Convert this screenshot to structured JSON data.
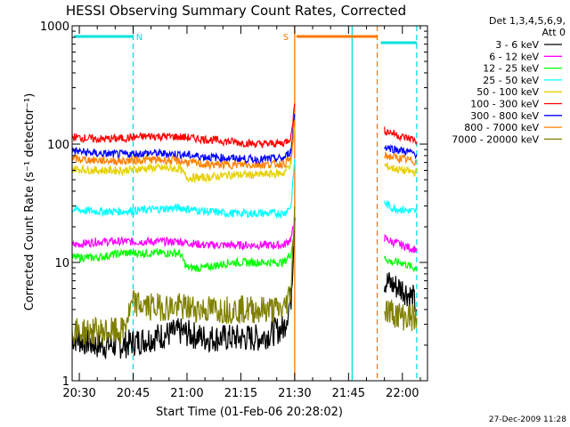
{
  "chart_data": {
    "type": "line",
    "title": "HESSI Observing Summary Count Rates, Corrected",
    "xlabel": "Start Time (01-Feb-06 20:28:02)",
    "ylabel": "Corrected Count Rate (s⁻¹ detector⁻¹)",
    "yscale": "log",
    "ylim": [
      1,
      1000
    ],
    "xlim": [
      "20:28",
      "22:07"
    ],
    "x_ticks": [
      "20:30",
      "20:45",
      "21:00",
      "21:15",
      "21:30",
      "21:45",
      "22:00"
    ],
    "y_ticks": [
      "1",
      "10",
      "100",
      "1000"
    ],
    "legend_header": [
      "Det 1,3,4,5,6,9,",
      "Att 0"
    ],
    "legend_position": "right",
    "footer": "27-Dec-2009 11:28",
    "markers": [
      {
        "label": "N",
        "start": "20:28",
        "end": "20:45",
        "color": "#00e0e0"
      },
      {
        "label": "S",
        "start": "21:30",
        "end": "21:53",
        "color": "#ff7700"
      }
    ],
    "vertical_lines": [
      {
        "time": "20:45",
        "color": "#00e0e0",
        "style": "dashed"
      },
      {
        "time": "21:30",
        "color": "#ff7700",
        "style": "solid"
      },
      {
        "time": "21:46",
        "color": "#00e0e0",
        "style": "solid"
      },
      {
        "time": "21:53",
        "color": "#ff7700",
        "style": "dashed"
      },
      {
        "time": "22:04",
        "color": "#00e0e0",
        "style": "dashed"
      }
    ],
    "series": [
      {
        "name": "3 - 6 keV",
        "color": "#000000",
        "x": [
          "20:28",
          "20:35",
          "20:42",
          "20:50",
          "20:58",
          "21:05",
          "21:12",
          "21:20",
          "21:27",
          "21:29",
          "21:30",
          "21:55",
          "21:57",
          "22:00",
          "22:03",
          "22:04"
        ],
        "values": [
          2.3,
          2.0,
          2.0,
          2.3,
          2.6,
          2.3,
          2.3,
          2.3,
          2.8,
          5,
          24,
          7,
          6.5,
          6,
          5,
          4
        ]
      },
      {
        "name": "6 - 12 keV",
        "color": "#ff00ff",
        "x": [
          "20:28",
          "20:35",
          "20:42",
          "20:50",
          "20:58",
          "21:05",
          "21:12",
          "21:20",
          "21:27",
          "21:29",
          "21:30",
          "21:55",
          "21:57",
          "22:00",
          "22:03",
          "22:04"
        ],
        "values": [
          14,
          15,
          15,
          15,
          15,
          14,
          14,
          14,
          14,
          16,
          22,
          16,
          15,
          14,
          13,
          13
        ]
      },
      {
        "name": "12 - 25 keV",
        "color": "#00ff00",
        "x": [
          "20:28",
          "20:35",
          "20:42",
          "20:50",
          "20:58",
          "21:00",
          "21:05",
          "21:12",
          "21:20",
          "21:27",
          "21:29",
          "21:30",
          "21:55",
          "21:57",
          "22:00",
          "22:03",
          "22:04"
        ],
        "values": [
          11,
          11,
          12,
          12,
          12,
          9,
          9,
          10,
          10,
          10,
          12,
          20,
          11,
          10,
          10,
          9,
          9
        ]
      },
      {
        "name": "25 - 50 keV",
        "color": "#00ffff",
        "x": [
          "20:28",
          "20:35",
          "20:42",
          "20:50",
          "20:58",
          "21:05",
          "21:12",
          "21:20",
          "21:27",
          "21:29",
          "21:30",
          "21:55",
          "21:57",
          "22:00",
          "22:03",
          "22:04"
        ],
        "values": [
          28,
          27,
          27,
          28,
          29,
          27,
          26,
          26,
          26,
          30,
          75,
          32,
          29,
          28,
          27,
          27
        ]
      },
      {
        "name": "50 - 100 keV",
        "color": "#e6d000",
        "x": [
          "20:28",
          "20:35",
          "20:42",
          "20:50",
          "20:58",
          "21:00",
          "21:05",
          "21:12",
          "21:20",
          "21:27",
          "21:29",
          "21:30",
          "21:55",
          "21:57",
          "22:00",
          "22:03",
          "22:04"
        ],
        "values": [
          62,
          60,
          60,
          63,
          62,
          52,
          52,
          55,
          55,
          57,
          70,
          140,
          66,
          63,
          60,
          58,
          58
        ]
      },
      {
        "name": "100 - 300 keV",
        "color": "#ff0000",
        "x": [
          "20:28",
          "20:35",
          "20:42",
          "20:50",
          "20:58",
          "21:05",
          "21:12",
          "21:20",
          "21:27",
          "21:29",
          "21:30",
          "21:55",
          "21:57",
          "22:00",
          "22:03",
          "22:04"
        ],
        "values": [
          115,
          110,
          112,
          117,
          115,
          110,
          105,
          100,
          102,
          115,
          220,
          130,
          125,
          115,
          110,
          105
        ]
      },
      {
        "name": "300 - 800 keV",
        "color": "#0000ff",
        "x": [
          "20:28",
          "20:35",
          "20:42",
          "20:50",
          "20:58",
          "21:05",
          "21:12",
          "21:20",
          "21:27",
          "21:29",
          "21:30",
          "21:55",
          "21:57",
          "22:00",
          "22:03",
          "22:04"
        ],
        "values": [
          88,
          83,
          82,
          84,
          82,
          78,
          76,
          74,
          76,
          88,
          180,
          95,
          92,
          88,
          84,
          82
        ]
      },
      {
        "name": "800 - 7000 keV",
        "color": "#ff8000",
        "x": [
          "20:28",
          "20:35",
          "20:42",
          "20:50",
          "20:58",
          "21:05",
          "21:12",
          "21:20",
          "21:27",
          "21:29",
          "21:30",
          "21:55",
          "21:57",
          "22:00",
          "22:03",
          "22:04"
        ],
        "values": [
          75,
          73,
          72,
          74,
          72,
          67,
          67,
          67,
          68,
          75,
          160,
          80,
          78,
          75,
          72,
          70
        ]
      },
      {
        "name": "7000 - 20000 keV",
        "color": "#808000",
        "x": [
          "20:28",
          "20:35",
          "20:42",
          "20:45",
          "20:50",
          "20:58",
          "21:05",
          "21:12",
          "21:20",
          "21:27",
          "21:29",
          "21:30",
          "21:55",
          "21:57",
          "22:00",
          "22:03",
          "22:04"
        ],
        "values": [
          2.6,
          2.6,
          2.6,
          4.5,
          4.2,
          4.2,
          4.0,
          4.0,
          4.0,
          4.0,
          6,
          30,
          4,
          3.8,
          3.5,
          3.4,
          3.4
        ]
      }
    ]
  }
}
